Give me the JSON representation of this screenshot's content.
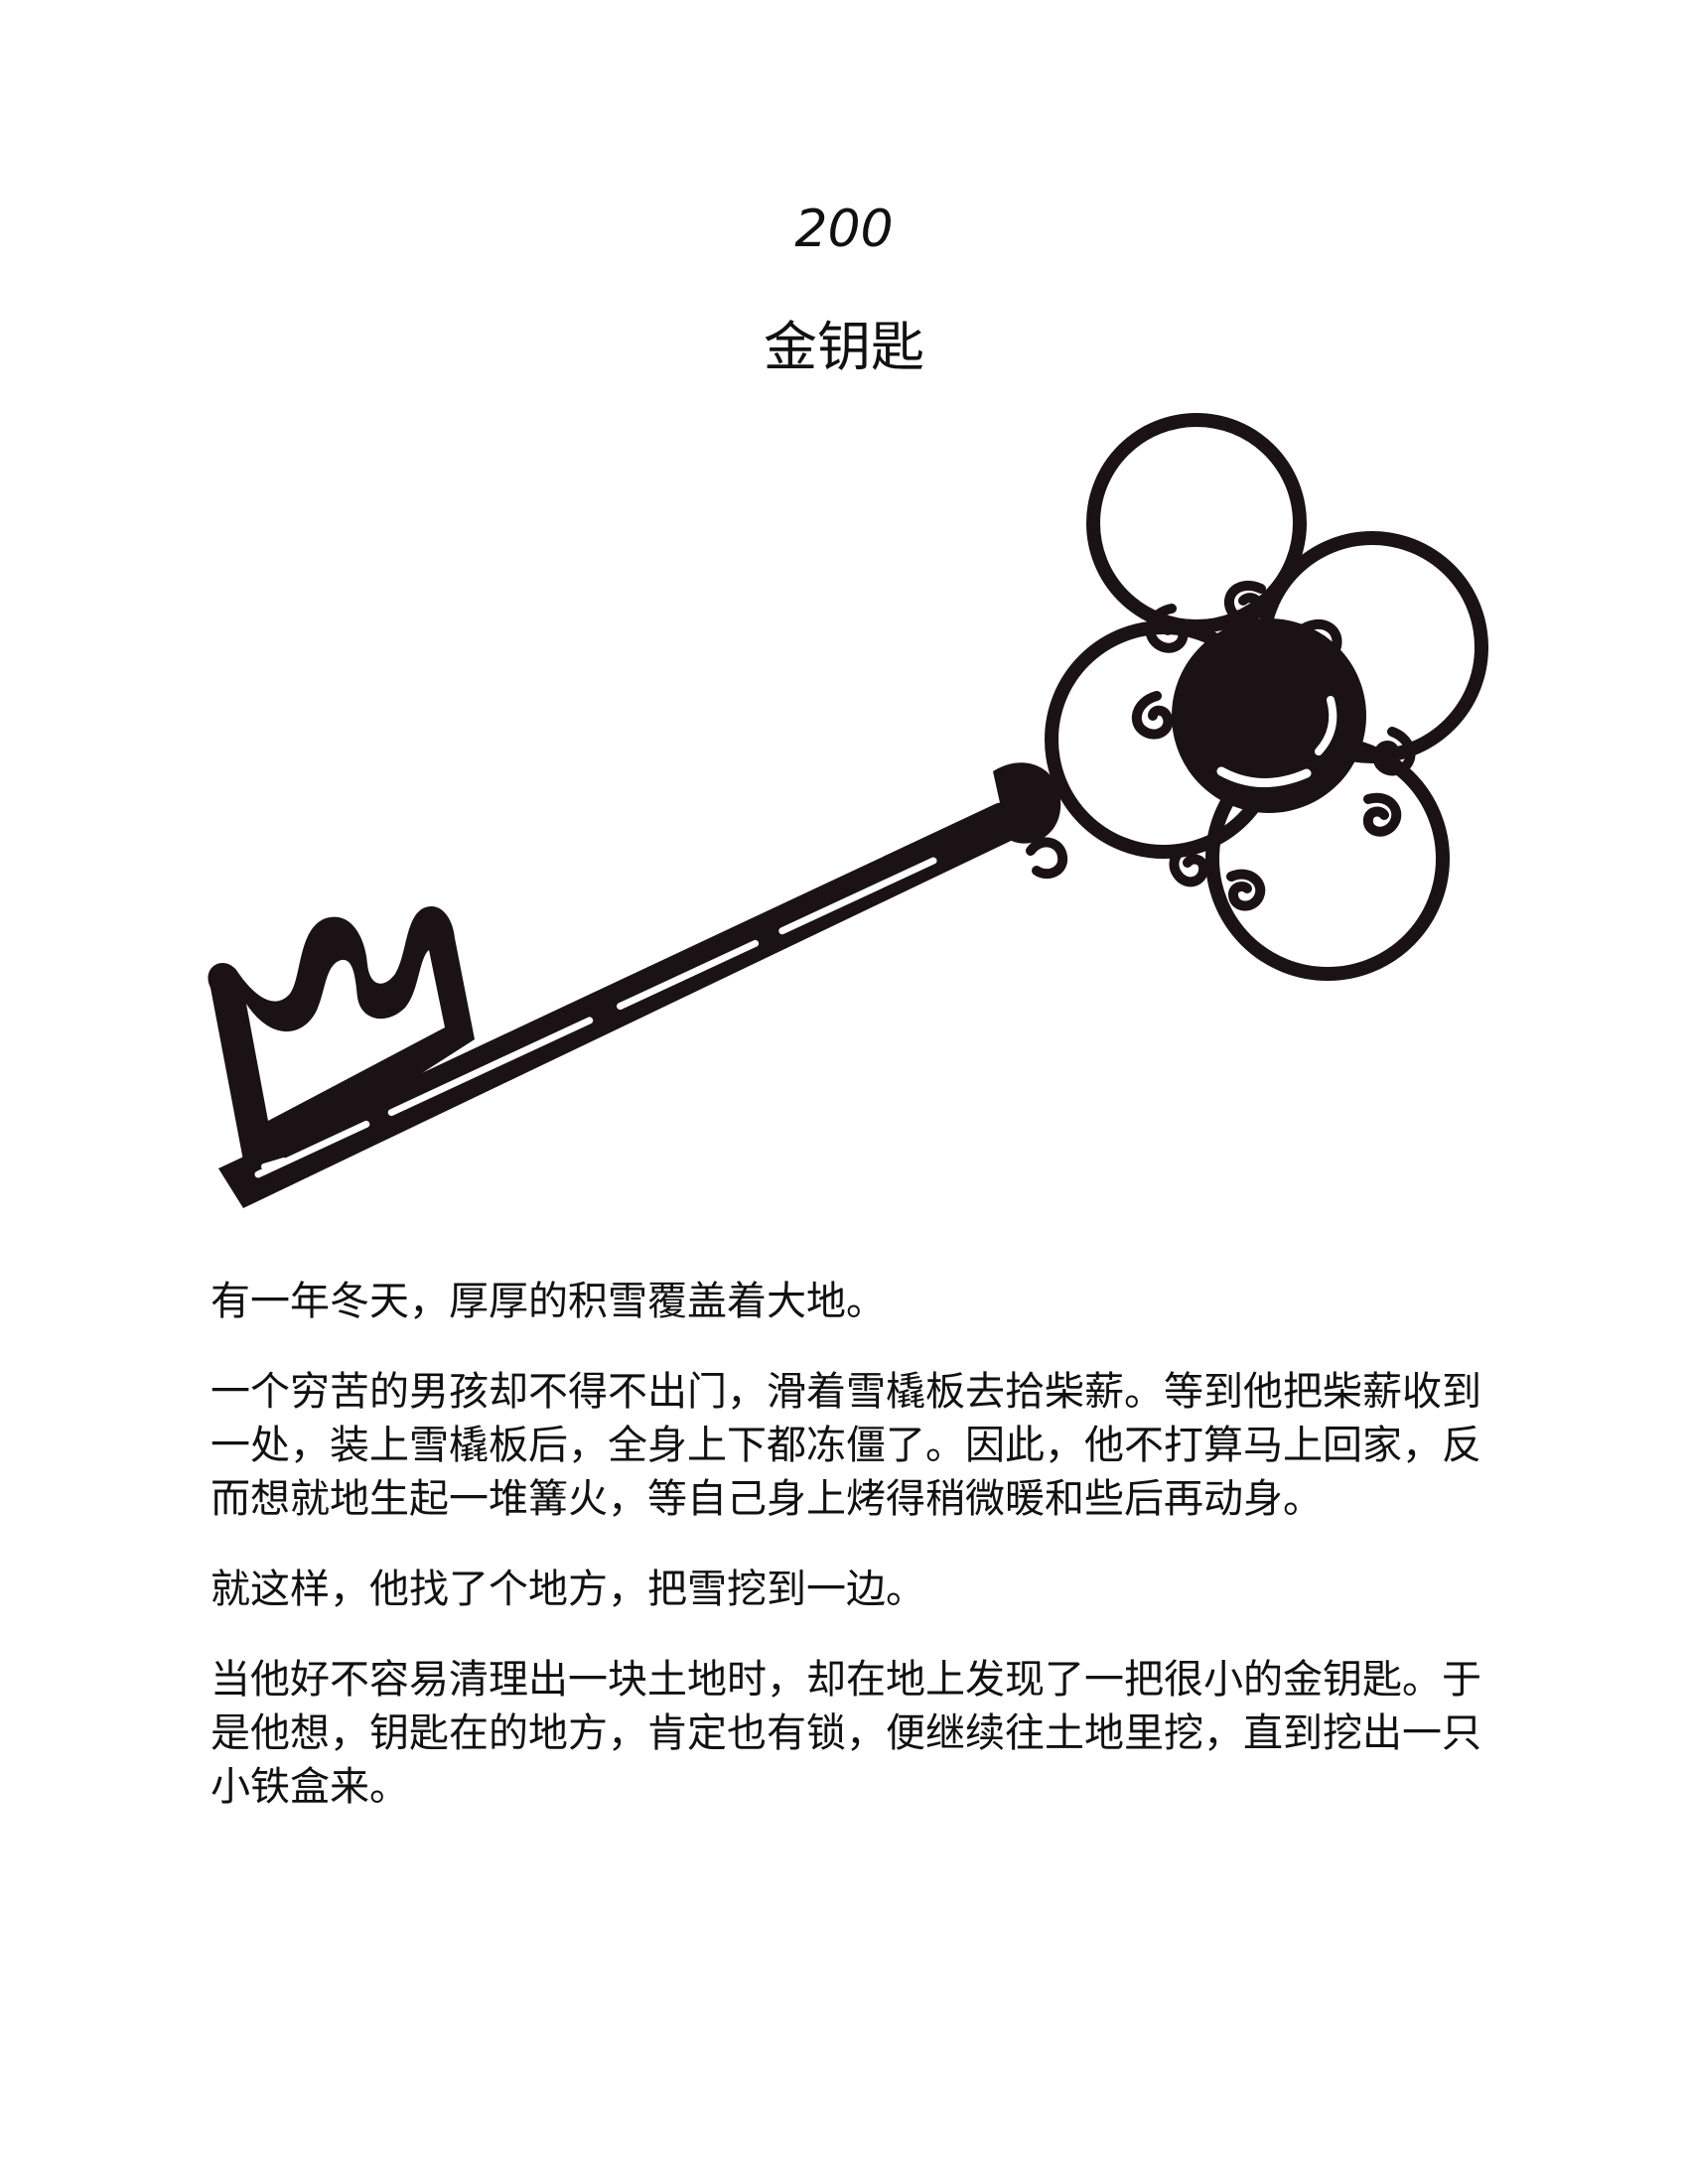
{
  "page": {
    "number": "200",
    "title": "金钥匙"
  },
  "illustration": {
    "icon": "key-icon",
    "color": "#1a1214"
  },
  "paragraphs": [
    "有一年冬天，厚厚的积雪覆盖着大地。",
    "一个穷苦的男孩却不得不出门，滑着雪橇板去拾柴薪。等到他把柴薪收到一处，装上雪橇板后，全身上下都冻僵了。因此，他不打算马上回家，反而想就地生起一堆篝火，等自己身上烤得稍微暖和些后再动身。",
    "就这样，他找了个地方，把雪挖到一边。",
    "当他好不容易清理出一块土地时，却在地上发现了一把很小的金钥匙。于是他想，钥匙在的地方，肯定也有锁，便继续往土地里挖，直到挖出一只小铁盒来。"
  ]
}
